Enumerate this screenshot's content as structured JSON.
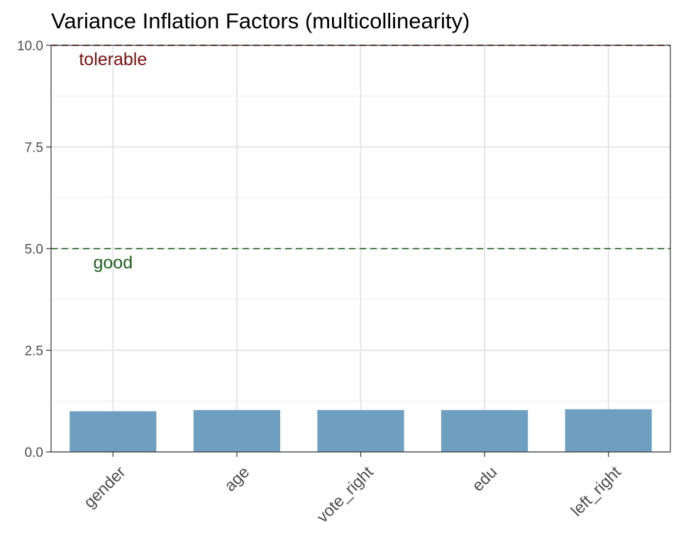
{
  "chart_data": {
    "type": "bar",
    "title": "Variance Inflation Factors (multicollinearity)",
    "xlabel": "",
    "ylabel": "",
    "categories": [
      "gender",
      "age",
      "vote_right",
      "edu",
      "left_right"
    ],
    "values": [
      1.0,
      1.03,
      1.03,
      1.03,
      1.05
    ],
    "ylim": [
      0,
      10
    ],
    "yticks": [
      0.0,
      2.5,
      5.0,
      7.5,
      10.0
    ],
    "ytick_labels": [
      "0.0",
      "2.5",
      "5.0",
      "7.5",
      "10.0"
    ],
    "grid": true,
    "bar_color": "#6f9fc0",
    "reference_lines": [
      {
        "y": 5,
        "color": "#4b7f4b",
        "style": "dashed"
      },
      {
        "y": 10,
        "color": "#7a1a1a",
        "style": "dashed"
      }
    ],
    "annotations": [
      {
        "text": "good",
        "x": "gender",
        "y": 4.65,
        "color": "#1f5e1f"
      },
      {
        "text": "tolerable",
        "x": "gender",
        "y": 9.65,
        "color": "#7a1010"
      }
    ]
  }
}
